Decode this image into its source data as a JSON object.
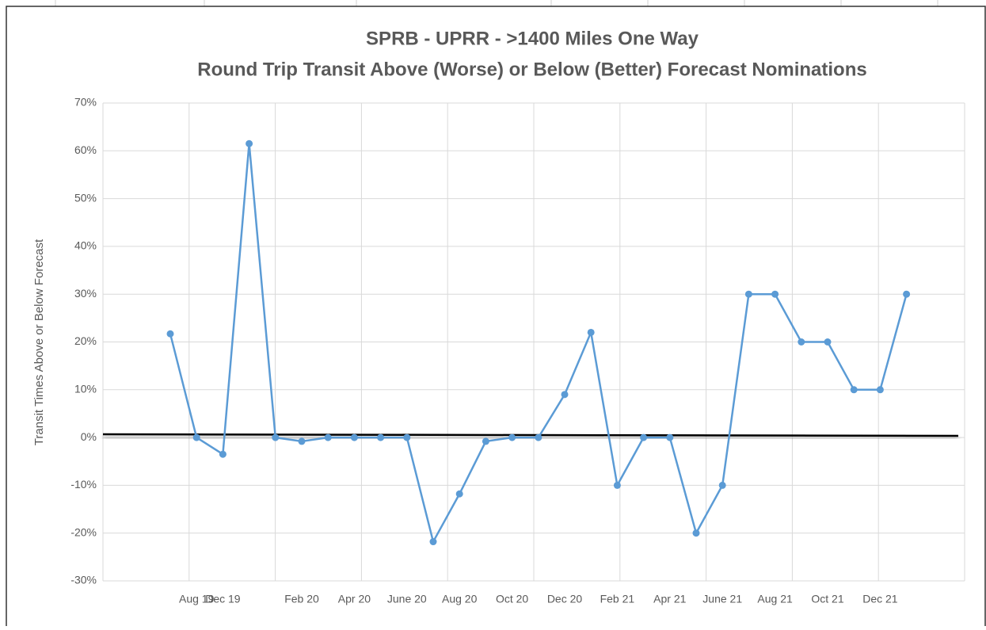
{
  "chart_data": {
    "type": "line",
    "title": "SPRB - UPRR - >1400 Miles One Way",
    "subtitle": "Round Trip Transit Above (Worse) or Below (Better) Forecast Nominations",
    "y_label": "Transit Times Above or Below Forecast",
    "categories": [
      null,
      "Aug 19",
      "Dec 19",
      null,
      null,
      "Feb 20",
      null,
      "Apr 20",
      null,
      "June 20",
      null,
      "Aug 20",
      null,
      "Oct 20",
      null,
      "Dec 20",
      null,
      "Feb 21",
      null,
      "Apr 21",
      null,
      "June 21",
      null,
      "Aug 21",
      null,
      "Oct 21",
      null,
      "Dec 21",
      null
    ],
    "series": [
      {
        "name": "Transit",
        "color": "#5b9bd5",
        "values": [
          21.7,
          0,
          -3.5,
          61.5,
          0,
          -0.8,
          0,
          0,
          0,
          0,
          -21.8,
          -11.8,
          -0.8,
          0,
          0,
          9,
          22,
          -10,
          0,
          0,
          -20,
          -10,
          30,
          30,
          20,
          20,
          10,
          10,
          30
        ]
      }
    ],
    "ylim": [
      -30,
      70
    ],
    "yticks": [
      {
        "value": -30,
        "label": "-30%"
      },
      {
        "value": -20,
        "label": "-20%"
      },
      {
        "value": -10,
        "label": "-10%"
      },
      {
        "value": 0,
        "label": "0%"
      },
      {
        "value": 10,
        "label": "10%"
      },
      {
        "value": 20,
        "label": "20%"
      },
      {
        "value": 30,
        "label": "30%"
      },
      {
        "value": 40,
        "label": "40%"
      },
      {
        "value": 50,
        "label": "50%"
      },
      {
        "value": 60,
        "label": "60%"
      },
      {
        "value": 70,
        "label": "70%"
      }
    ],
    "grid": true
  }
}
